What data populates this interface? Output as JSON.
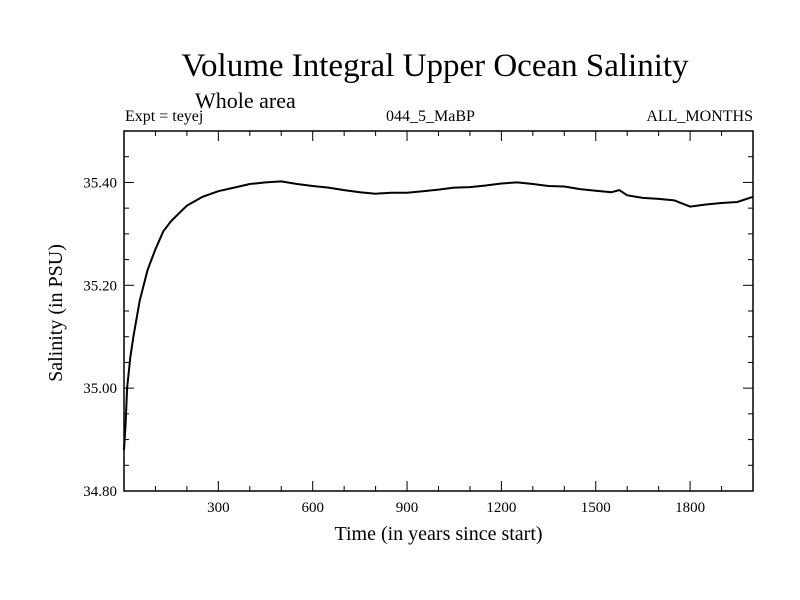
{
  "chart_data": {
    "type": "line",
    "title": "Volume Integral Upper Ocean Salinity",
    "subtitle": "Whole area",
    "info_left": "Expt = teyej",
    "info_center": "044_5_MaBP",
    "info_right": "ALL_MONTHS",
    "xlabel": "Time (in years since start)",
    "ylabel": "Salinity (in PSU)",
    "xlim": [
      0,
      2000
    ],
    "ylim": [
      34.8,
      35.5
    ],
    "x_ticks": [
      300,
      600,
      900,
      1200,
      1500,
      1800
    ],
    "x_tick_labels": [
      "300",
      "600",
      "900",
      "1200",
      "1500",
      "1800"
    ],
    "y_ticks": [
      34.8,
      35.0,
      35.2,
      35.4
    ],
    "y_tick_labels": [
      "34.80",
      "35.00",
      "35.20",
      "35.40"
    ],
    "series": [
      {
        "name": "Salinity",
        "x": [
          0,
          5,
          10,
          20,
          30,
          50,
          75,
          100,
          125,
          150,
          175,
          200,
          250,
          300,
          350,
          400,
          450,
          500,
          550,
          600,
          650,
          700,
          750,
          800,
          850,
          900,
          950,
          1000,
          1050,
          1100,
          1150,
          1200,
          1250,
          1300,
          1350,
          1400,
          1450,
          1500,
          1550,
          1575,
          1600,
          1650,
          1700,
          1750,
          1800,
          1850,
          1900,
          1950,
          2000
        ],
        "y": [
          34.88,
          34.93,
          35.0,
          35.06,
          35.1,
          35.17,
          35.23,
          35.27,
          35.305,
          35.325,
          35.34,
          35.355,
          35.372,
          35.383,
          35.39,
          35.397,
          35.4,
          35.402,
          35.397,
          35.393,
          35.39,
          35.385,
          35.381,
          35.378,
          35.38,
          35.38,
          35.383,
          35.386,
          35.39,
          35.391,
          35.394,
          35.398,
          35.4,
          35.397,
          35.393,
          35.392,
          35.387,
          35.384,
          35.381,
          35.385,
          35.375,
          35.37,
          35.368,
          35.365,
          35.353,
          35.357,
          35.36,
          35.362,
          35.372
        ]
      }
    ]
  }
}
